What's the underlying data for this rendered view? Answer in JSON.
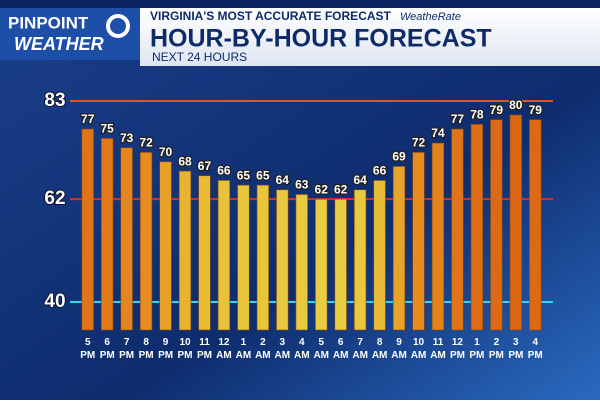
{
  "chart_data": {
    "type": "bar",
    "logo": {
      "line1": "PINPOINT",
      "line2": "WEATHER"
    },
    "banner": "VIRGINIA'S MOST ACCURATE FORECAST",
    "badge": "WeatheRate",
    "title": "HOUR-BY-HOUR FORECAST",
    "subtitle": "NEXT 24 HOURS",
    "categories": [
      "5 PM",
      "6 PM",
      "7 PM",
      "8 PM",
      "9 PM",
      "10 PM",
      "11 PM",
      "12 AM",
      "1 AM",
      "2 AM",
      "3 AM",
      "4 AM",
      "5 AM",
      "6 AM",
      "7 AM",
      "8 AM",
      "9 AM",
      "10 AM",
      "11 AM",
      "12 PM",
      "1 PM",
      "2 PM",
      "3 PM",
      "4 PM"
    ],
    "values": [
      77,
      75,
      73,
      72,
      70,
      68,
      67,
      66,
      65,
      65,
      64,
      63,
      62,
      62,
      64,
      66,
      69,
      72,
      74,
      77,
      78,
      79,
      80,
      79
    ],
    "colors": [
      "#e07418",
      "#e27a1a",
      "#e4861e",
      "#e68c20",
      "#e8a028",
      "#e8b232",
      "#e8bc36",
      "#e8c23a",
      "#e8c63c",
      "#e8c63c",
      "#e8c83e",
      "#e8ca40",
      "#e8cc42",
      "#e8cc42",
      "#e8c83e",
      "#e8bc36",
      "#e8a42a",
      "#e68c20",
      "#e4821c",
      "#e07418",
      "#de6e16",
      "#dc6a14",
      "#da6612",
      "#dc6a14"
    ],
    "ylim": [
      34,
      83
    ],
    "yticks": [
      40,
      62,
      83
    ],
    "ytick_colors": [
      "#2fd6ee",
      "#e0301c",
      "#e8501c"
    ]
  }
}
